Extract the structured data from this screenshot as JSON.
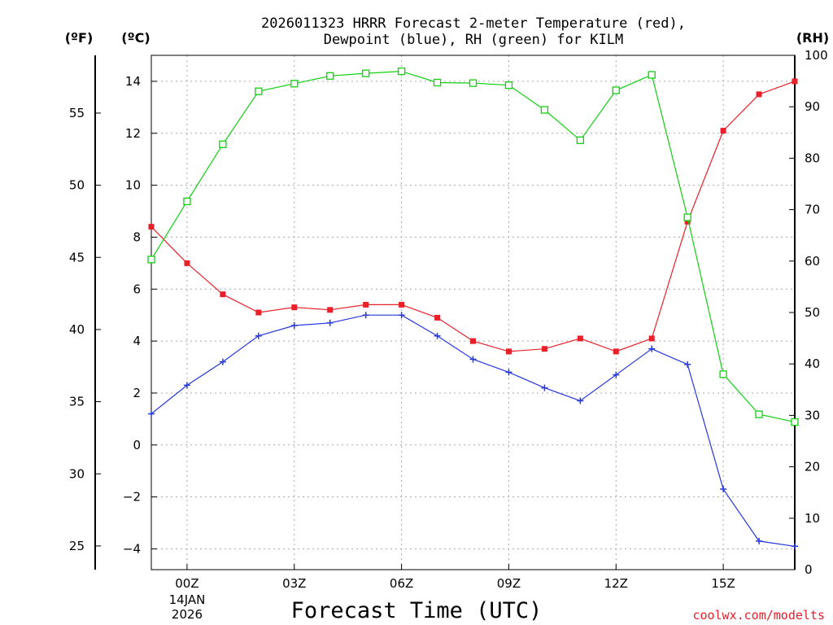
{
  "chart_data": {
    "type": "line",
    "title_lines": [
      "2026011323 HRRR Forecast 2-meter Temperature (red),",
      "Dewpoint (blue), RH (green) for KILM"
    ],
    "xlabel": "Forecast Time (UTC)",
    "credit": "coolwx.com/modelts",
    "date_label": [
      "14JAN",
      "2026"
    ],
    "units": {
      "fahrenheit": "(ºF)",
      "celsius": "(ºC)",
      "rh": "(RH)"
    },
    "x_hours": [
      -1,
      0,
      1,
      2,
      3,
      4,
      5,
      6,
      7,
      8,
      9,
      10,
      11,
      12,
      13,
      14,
      15,
      16,
      17
    ],
    "xlim": [
      -1,
      17
    ],
    "x_ticks": [
      {
        "hour": 0,
        "label": "00Z"
      },
      {
        "hour": 3,
        "label": "03Z"
      },
      {
        "hour": 6,
        "label": "06Z"
      },
      {
        "hour": 9,
        "label": "09Z"
      },
      {
        "hour": 12,
        "label": "12Z"
      },
      {
        "hour": 15,
        "label": "15Z"
      }
    ],
    "celsius_axis": {
      "range": [
        -4.8,
        15.0
      ],
      "ticks": [
        -4,
        -2,
        0,
        2,
        4,
        6,
        8,
        10,
        12,
        14
      ],
      "labels": [
        "−4",
        "−2",
        "0",
        "2",
        "4",
        "6",
        "8",
        "10",
        "12",
        "14"
      ]
    },
    "fahrenheit_axis": {
      "ticks": [
        25,
        30,
        35,
        40,
        45,
        50,
        55
      ],
      "labels": [
        "25",
        "30",
        "35",
        "40",
        "45",
        "50",
        "55"
      ]
    },
    "rh_axis": {
      "range": [
        0,
        100
      ],
      "ticks": [
        0,
        10,
        20,
        30,
        40,
        50,
        60,
        70,
        80,
        90,
        100
      ],
      "labels": [
        "0",
        "10",
        "20",
        "30",
        "40",
        "50",
        "60",
        "70",
        "80",
        "90",
        "100"
      ]
    },
    "series": [
      {
        "name": "Temperature",
        "axis": "celsius",
        "color": "#e8202a",
        "marker": "filled-square",
        "values": [
          8.4,
          7.0,
          5.8,
          5.1,
          5.3,
          5.2,
          5.4,
          5.4,
          4.9,
          4.0,
          3.6,
          3.7,
          4.1,
          3.6,
          4.1,
          8.6,
          12.1,
          13.5,
          14.0
        ]
      },
      {
        "name": "Dewpoint",
        "axis": "celsius",
        "color": "#2638e0",
        "marker": "plus",
        "values": [
          1.2,
          2.3,
          3.2,
          4.2,
          4.6,
          4.7,
          5.0,
          5.0,
          4.2,
          3.3,
          2.8,
          2.2,
          1.7,
          2.7,
          3.7,
          3.1,
          -1.7,
          -3.7,
          -3.9
        ]
      },
      {
        "name": "RH",
        "axis": "rh",
        "color": "#10d010",
        "marker": "open-square",
        "values": [
          60.3,
          71.6,
          82.7,
          93.0,
          94.5,
          96.0,
          96.5,
          96.9,
          94.7,
          94.6,
          94.2,
          89.4,
          83.5,
          93.2,
          96.2,
          68.5,
          38.0,
          30.2,
          28.7
        ]
      }
    ]
  }
}
